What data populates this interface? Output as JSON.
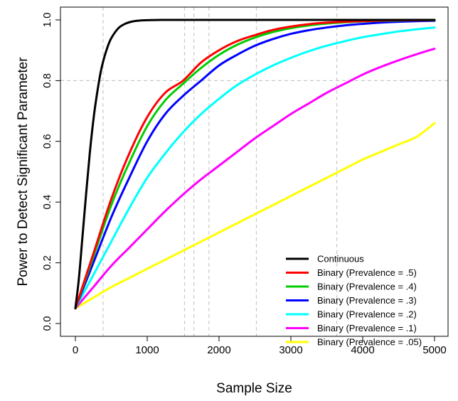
{
  "chart_data": {
    "type": "line",
    "title": "",
    "xlabel": "Sample Size",
    "ylabel": "Power to Detect Significant Parameter",
    "xlim": [
      0,
      5000
    ],
    "ylim": [
      0,
      1
    ],
    "x_ticks": [
      0,
      1000,
      2000,
      3000,
      4000,
      5000
    ],
    "y_ticks": [
      0.0,
      0.2,
      0.4,
      0.6,
      0.8,
      1.0
    ],
    "x_tick_labels": [
      "0",
      "1000",
      "2000",
      "3000",
      "4000",
      "5000"
    ],
    "y_tick_labels": [
      "0.0",
      "0.2",
      "0.4",
      "0.6",
      "0.8",
      "1.0"
    ],
    "reference_lines": {
      "horizontal": [
        0.8
      ],
      "vertical": [
        385,
        1520,
        1650,
        1860,
        2520,
        3640
      ]
    },
    "grid": false,
    "legend_position": "bottom-right",
    "series": [
      {
        "name": "Continuous",
        "color": "#000000",
        "x": [
          0,
          50,
          100,
          150,
          200,
          250,
          300,
          350,
          400,
          450,
          500,
          600,
          700,
          800,
          900,
          1000,
          1200,
          1500,
          2000,
          3000,
          4000,
          5000
        ],
        "y": [
          0.05,
          0.15,
          0.29,
          0.43,
          0.56,
          0.67,
          0.755,
          0.825,
          0.875,
          0.912,
          0.94,
          0.973,
          0.988,
          0.995,
          0.998,
          0.999,
          1.0,
          1.0,
          1.0,
          1.0,
          1.0,
          1.0
        ]
      },
      {
        "name": "Binary (Prevalence = .5)",
        "color": "#ff0000",
        "x": [
          0,
          250,
          500,
          750,
          1000,
          1250,
          1500,
          1750,
          2000,
          2250,
          2500,
          2750,
          3000,
          3250,
          3500,
          3750,
          4000,
          4250,
          4500,
          4750,
          5000
        ],
        "y": [
          0.05,
          0.23,
          0.41,
          0.56,
          0.68,
          0.76,
          0.8,
          0.86,
          0.9,
          0.93,
          0.95,
          0.967,
          0.978,
          0.986,
          0.991,
          0.994,
          0.996,
          0.998,
          0.999,
          0.999,
          1.0
        ]
      },
      {
        "name": "Binary (Prevalence = .4)",
        "color": "#00cd00",
        "x": [
          0,
          250,
          500,
          750,
          1000,
          1250,
          1500,
          1750,
          2000,
          2250,
          2500,
          2750,
          3000,
          3250,
          3500,
          3750,
          4000,
          4250,
          4500,
          4750,
          5000
        ],
        "y": [
          0.05,
          0.22,
          0.39,
          0.53,
          0.65,
          0.735,
          0.79,
          0.842,
          0.885,
          0.918,
          0.942,
          0.96,
          0.973,
          0.982,
          0.988,
          0.992,
          0.995,
          0.997,
          0.998,
          0.999,
          0.999
        ]
      },
      {
        "name": "Binary (Prevalence = .3)",
        "color": "#0000ff",
        "x": [
          0,
          250,
          500,
          750,
          1000,
          1250,
          1500,
          1750,
          2000,
          2250,
          2500,
          2750,
          3000,
          3250,
          3500,
          3750,
          4000,
          4250,
          4500,
          4750,
          5000
        ],
        "y": [
          0.05,
          0.2,
          0.35,
          0.48,
          0.6,
          0.69,
          0.75,
          0.8,
          0.85,
          0.885,
          0.915,
          0.937,
          0.954,
          0.966,
          0.975,
          0.982,
          0.987,
          0.991,
          0.994,
          0.996,
          0.997
        ]
      },
      {
        "name": "Binary (Prevalence = .2)",
        "color": "#00ffff",
        "x": [
          0,
          250,
          500,
          750,
          1000,
          1250,
          1500,
          1750,
          2000,
          2250,
          2500,
          2750,
          3000,
          3250,
          3500,
          3750,
          4000,
          4250,
          4500,
          4750,
          5000
        ],
        "y": [
          0.05,
          0.16,
          0.27,
          0.38,
          0.48,
          0.56,
          0.63,
          0.69,
          0.74,
          0.785,
          0.82,
          0.85,
          0.875,
          0.897,
          0.915,
          0.93,
          0.943,
          0.953,
          0.962,
          0.969,
          0.975
        ]
      },
      {
        "name": "Binary (Prevalence = .1)",
        "color": "#ff00ff",
        "x": [
          0,
          250,
          500,
          750,
          1000,
          1250,
          1500,
          1750,
          2000,
          2250,
          2500,
          2750,
          3000,
          3250,
          3500,
          3750,
          4000,
          4250,
          4500,
          4750,
          5000
        ],
        "y": [
          0.05,
          0.12,
          0.19,
          0.25,
          0.31,
          0.37,
          0.425,
          0.475,
          0.52,
          0.565,
          0.61,
          0.65,
          0.69,
          0.725,
          0.76,
          0.79,
          0.82,
          0.845,
          0.867,
          0.887,
          0.905
        ]
      },
      {
        "name": "Binary (Prevalence = .05)",
        "color": "#ffff00",
        "x": [
          0,
          250,
          500,
          750,
          1000,
          1250,
          1500,
          1750,
          2000,
          2250,
          2500,
          2750,
          3000,
          3250,
          3500,
          3750,
          4000,
          4250,
          4500,
          4750,
          5000
        ],
        "y": [
          0.05,
          0.085,
          0.12,
          0.15,
          0.18,
          0.21,
          0.24,
          0.27,
          0.3,
          0.33,
          0.36,
          0.39,
          0.42,
          0.45,
          0.48,
          0.51,
          0.54,
          0.565,
          0.59,
          0.615,
          0.66
        ]
      }
    ]
  }
}
